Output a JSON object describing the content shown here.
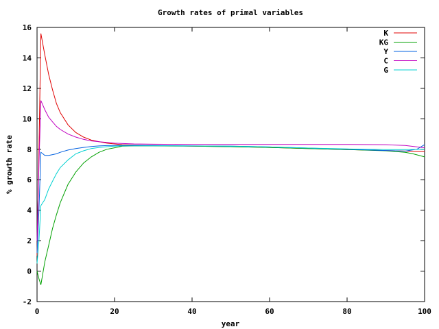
{
  "chart_data": {
    "type": "line",
    "title": "Growth rates of primal variables",
    "xlabel": "year",
    "ylabel": "% growth rate",
    "xlim": [
      0,
      100
    ],
    "ylim": [
      -2,
      16
    ],
    "xticks": [
      "0",
      "20",
      "40",
      "60",
      "80",
      "100"
    ],
    "yticks": [
      "-2",
      "0",
      "2",
      "4",
      "6",
      "8",
      "10",
      "12",
      "14",
      "16"
    ],
    "grid": false,
    "legend": "top-right",
    "series": [
      {
        "name": "K",
        "color": "#e00000",
        "x": [
          0,
          0.5,
          1,
          2,
          3,
          4,
          5,
          6,
          8,
          10,
          12,
          14,
          16,
          18,
          20,
          22,
          25,
          30,
          40,
          50,
          60,
          70,
          80,
          90,
          95,
          100
        ],
        "y": [
          1.0,
          8.0,
          15.6,
          14.2,
          12.9,
          11.9,
          11.0,
          10.4,
          9.6,
          9.1,
          8.8,
          8.6,
          8.5,
          8.4,
          8.35,
          8.3,
          8.28,
          8.25,
          8.2,
          8.17,
          8.12,
          8.05,
          7.98,
          7.92,
          7.88,
          7.85
        ]
      },
      {
        "name": "KG",
        "color": "#00a000",
        "x": [
          0,
          0.5,
          1,
          2,
          3,
          4,
          5,
          6,
          8,
          10,
          12,
          14,
          16,
          18,
          20,
          22,
          25,
          30,
          40,
          50,
          60,
          70,
          80,
          90,
          95,
          97,
          100
        ],
        "y": [
          0,
          -0.5,
          -0.9,
          0.6,
          1.7,
          2.8,
          3.7,
          4.5,
          5.7,
          6.5,
          7.1,
          7.5,
          7.8,
          8.0,
          8.1,
          8.2,
          8.22,
          8.22,
          8.2,
          8.17,
          8.12,
          8.05,
          7.98,
          7.9,
          7.8,
          7.7,
          7.5
        ]
      },
      {
        "name": "Y",
        "color": "#0060e0",
        "x": [
          0,
          0.5,
          1,
          1.5,
          2,
          3,
          4,
          5,
          6,
          8,
          10,
          12,
          14,
          16,
          18,
          20,
          25,
          30,
          40,
          50,
          60,
          70,
          80,
          90,
          95,
          98,
          100
        ],
        "y": [
          1.2,
          4.0,
          7.8,
          7.7,
          7.6,
          7.6,
          7.65,
          7.7,
          7.8,
          7.95,
          8.05,
          8.12,
          8.18,
          8.22,
          8.24,
          8.25,
          8.26,
          8.25,
          8.22,
          8.2,
          8.15,
          8.08,
          8.0,
          7.92,
          7.88,
          8.0,
          8.3
        ]
      },
      {
        "name": "C",
        "color": "#c000c0",
        "x": [
          0,
          0.5,
          1,
          2,
          3,
          4,
          5,
          6,
          8,
          10,
          12,
          14,
          16,
          18,
          20,
          25,
          30,
          40,
          50,
          60,
          70,
          80,
          90,
          95,
          100
        ],
        "y": [
          2.0,
          7.0,
          11.2,
          10.6,
          10.1,
          9.8,
          9.5,
          9.3,
          9.0,
          8.8,
          8.65,
          8.55,
          8.5,
          8.45,
          8.4,
          8.35,
          8.33,
          8.32,
          8.32,
          8.32,
          8.32,
          8.32,
          8.3,
          8.25,
          8.1
        ]
      },
      {
        "name": "G",
        "color": "#00d0d0",
        "x": [
          0,
          0.5,
          1,
          2,
          3,
          4,
          5,
          6,
          8,
          10,
          12,
          14,
          16,
          18,
          20,
          22,
          25,
          30,
          40,
          50,
          60,
          70,
          80,
          90,
          95,
          100
        ],
        "y": [
          0.5,
          2.0,
          4.3,
          4.7,
          5.4,
          5.9,
          6.4,
          6.8,
          7.3,
          7.7,
          7.9,
          8.05,
          8.12,
          8.17,
          8.2,
          8.22,
          8.23,
          8.23,
          8.22,
          8.2,
          8.15,
          8.08,
          8.02,
          7.98,
          7.98,
          8.0
        ]
      }
    ]
  }
}
